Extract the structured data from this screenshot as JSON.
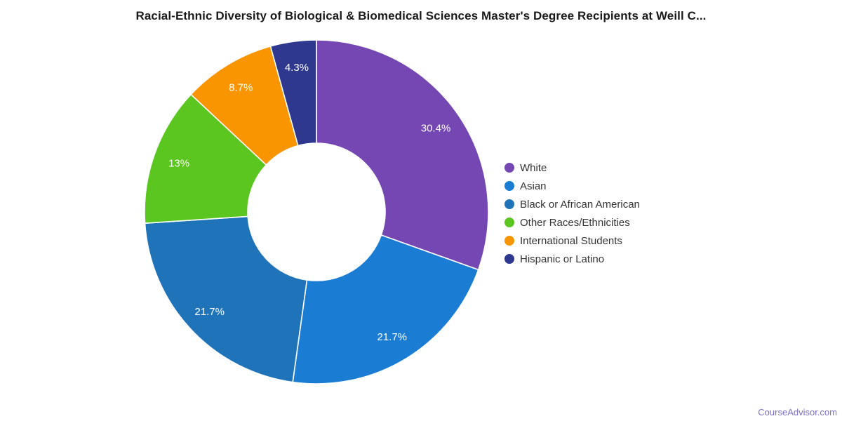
{
  "page": {
    "background": "#FFFFFF",
    "watermark": "CourseAdvisor.com",
    "watermark_color": "#7D6EC8"
  },
  "chart_data": {
    "type": "pie",
    "subtype": "donut",
    "title": "Racial-Ethnic Diversity of Biological & Biomedical Sciences Master's Degree Recipients at Weill C...",
    "title_color": "#1A1A1A",
    "legend_position": "right",
    "grid": false,
    "slice_label_color": "#FFFFFF",
    "legend_text_color": "#333333",
    "start_angle_deg": 0,
    "direction": "clockwise",
    "slices": [
      {
        "label": "White",
        "value": 30.4,
        "display": "30.4%",
        "color": "#7547B2"
      },
      {
        "label": "Asian",
        "value": 21.7,
        "display": "21.7%",
        "color": "#1A7DD3"
      },
      {
        "label": "Black or African American",
        "value": 21.7,
        "display": "21.7%",
        "color": "#1F73B9"
      },
      {
        "label": "Other Races/Ethnicities",
        "value": 13,
        "display": "13%",
        "color": "#5CC620"
      },
      {
        "label": "International Students",
        "value": 8.7,
        "display": "8.7%",
        "color": "#F89500"
      },
      {
        "label": "Hispanic or Latino",
        "value": 4.3,
        "display": "4.3%",
        "color": "#2E388F"
      }
    ]
  }
}
